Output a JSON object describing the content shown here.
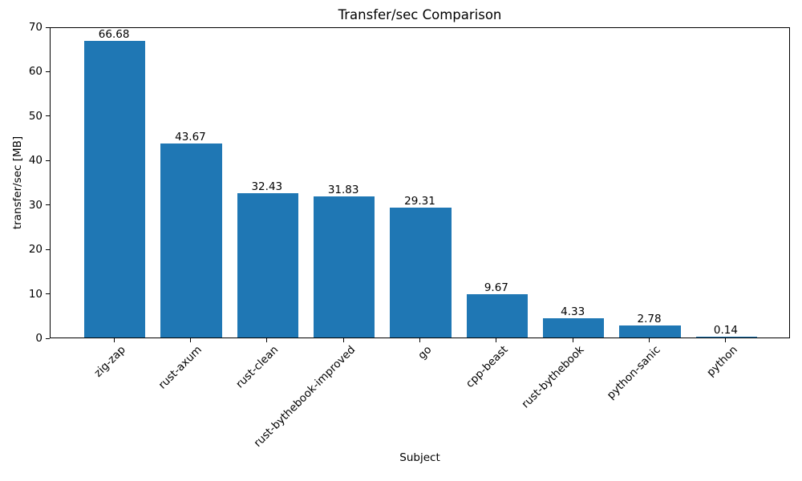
{
  "chart_data": {
    "type": "bar",
    "title": "Transfer/sec Comparison",
    "xlabel": "Subject",
    "ylabel": "transfer/sec [MB]",
    "categories": [
      "zig-zap",
      "rust-axum",
      "rust-clean",
      "rust-bythebook-improved",
      "go",
      "cpp-beast",
      "rust-bythebook",
      "python-sanic",
      "python"
    ],
    "values": [
      66.68,
      43.67,
      32.43,
      31.83,
      29.31,
      9.67,
      4.33,
      2.78,
      0.14
    ],
    "bar_labels": [
      "66.68",
      "43.67",
      "32.43",
      "31.83",
      "29.31",
      "9.67",
      "4.33",
      "2.78",
      "0.14"
    ],
    "ylim": [
      0,
      70
    ],
    "yticks": [
      0,
      10,
      20,
      30,
      40,
      50,
      60,
      70
    ],
    "bar_color": "#1f77b4",
    "text_color": "#000000",
    "grid": false,
    "legend_position": "none"
  }
}
